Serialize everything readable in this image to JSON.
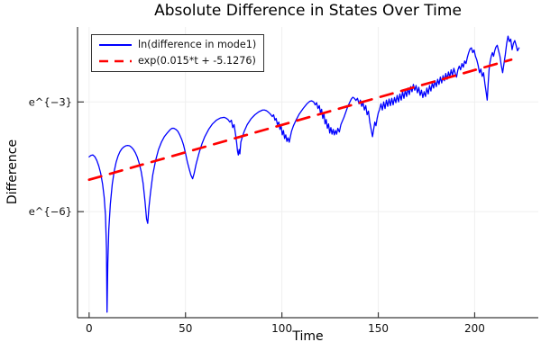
{
  "chart_data": {
    "type": "line",
    "title": "Absolute Difference in States Over Time",
    "xlabel": "Time",
    "ylabel": "Difference",
    "xlim": [
      -6,
      233
    ],
    "ylim_ln": [
      -8.9,
      -0.95
    ],
    "x_ticks": [
      0,
      50,
      100,
      150,
      200
    ],
    "y_ticks": [
      {
        "v": -3,
        "label": "e^{−3}"
      },
      {
        "v": -6,
        "label": "e^{−6}"
      }
    ],
    "grid": true,
    "legend_position": "top-left",
    "axis_color": "#3a3a3a",
    "grid_color": "#efefef",
    "series": [
      {
        "name": "ln(difference in mode1)",
        "color": "#0000ff",
        "style": "solid",
        "width": 1.3,
        "points": [
          [
            0,
            -4.5
          ],
          [
            1,
            -4.46
          ],
          [
            2,
            -4.45
          ],
          [
            3,
            -4.5
          ],
          [
            4,
            -4.6
          ],
          [
            5,
            -4.75
          ],
          [
            6,
            -4.95
          ],
          [
            7,
            -5.25
          ],
          [
            7.8,
            -5.6
          ],
          [
            8.5,
            -6.1
          ],
          [
            9,
            -7.0
          ],
          [
            9.3,
            -8.75
          ],
          [
            9.7,
            -7.4
          ],
          [
            10.2,
            -6.5
          ],
          [
            11,
            -5.8
          ],
          [
            12,
            -5.25
          ],
          [
            13,
            -4.9
          ],
          [
            14,
            -4.65
          ],
          [
            15,
            -4.48
          ],
          [
            16,
            -4.36
          ],
          [
            17,
            -4.28
          ],
          [
            18,
            -4.23
          ],
          [
            19,
            -4.2
          ],
          [
            20,
            -4.19
          ],
          [
            21,
            -4.2
          ],
          [
            22,
            -4.24
          ],
          [
            23,
            -4.3
          ],
          [
            24,
            -4.39
          ],
          [
            25,
            -4.51
          ],
          [
            26,
            -4.68
          ],
          [
            27,
            -4.9
          ],
          [
            28,
            -5.22
          ],
          [
            29,
            -5.72
          ],
          [
            29.8,
            -6.2
          ],
          [
            30.4,
            -6.32
          ],
          [
            31,
            -5.9
          ],
          [
            31.8,
            -5.5
          ],
          [
            33,
            -5.0
          ],
          [
            34.5,
            -4.6
          ],
          [
            36,
            -4.3
          ],
          [
            37.5,
            -4.1
          ],
          [
            39,
            -3.95
          ],
          [
            40.5,
            -3.85
          ],
          [
            42,
            -3.76
          ],
          [
            43,
            -3.72
          ],
          [
            44,
            -3.72
          ],
          [
            45,
            -3.75
          ],
          [
            46,
            -3.8
          ],
          [
            47,
            -3.9
          ],
          [
            48,
            -4.02
          ],
          [
            49,
            -4.18
          ],
          [
            50,
            -4.4
          ],
          [
            51,
            -4.65
          ],
          [
            52,
            -4.85
          ],
          [
            52.8,
            -5.0
          ],
          [
            53.7,
            -5.1
          ],
          [
            54.5,
            -4.95
          ],
          [
            55.5,
            -4.7
          ],
          [
            57,
            -4.4
          ],
          [
            58.5,
            -4.15
          ],
          [
            60,
            -3.95
          ],
          [
            62,
            -3.75
          ],
          [
            64,
            -3.6
          ],
          [
            66,
            -3.5
          ],
          [
            68,
            -3.44
          ],
          [
            70,
            -3.42
          ],
          [
            71,
            -3.44
          ],
          [
            72,
            -3.48
          ],
          [
            73,
            -3.55
          ],
          [
            73.8,
            -3.5
          ],
          [
            74.5,
            -3.7
          ],
          [
            75.2,
            -3.62
          ],
          [
            76,
            -3.9
          ],
          [
            76.5,
            -4.1
          ],
          [
            77,
            -4.35
          ],
          [
            77.4,
            -4.45
          ],
          [
            77.8,
            -4.3
          ],
          [
            78.2,
            -4.42
          ],
          [
            78.7,
            -4.1
          ],
          [
            79.5,
            -3.95
          ],
          [
            80.5,
            -3.8
          ],
          [
            82,
            -3.62
          ],
          [
            84,
            -3.46
          ],
          [
            86,
            -3.35
          ],
          [
            88,
            -3.27
          ],
          [
            90,
            -3.22
          ],
          [
            91,
            -3.22
          ],
          [
            92,
            -3.24
          ],
          [
            93,
            -3.28
          ],
          [
            94,
            -3.33
          ],
          [
            95,
            -3.4
          ],
          [
            95.7,
            -3.35
          ],
          [
            96.4,
            -3.5
          ],
          [
            97,
            -3.45
          ],
          [
            97.7,
            -3.62
          ],
          [
            98.4,
            -3.55
          ],
          [
            99,
            -3.75
          ],
          [
            99.6,
            -3.65
          ],
          [
            100.2,
            -3.9
          ],
          [
            100.8,
            -3.78
          ],
          [
            101.4,
            -4.0
          ],
          [
            102,
            -3.9
          ],
          [
            102.6,
            -4.08
          ],
          [
            103.2,
            -3.98
          ],
          [
            103.8,
            -4.1
          ],
          [
            104.4,
            -3.95
          ],
          [
            105,
            -3.8
          ],
          [
            106,
            -3.65
          ],
          [
            107.5,
            -3.48
          ],
          [
            109,
            -3.33
          ],
          [
            111,
            -3.18
          ],
          [
            113,
            -3.05
          ],
          [
            114.5,
            -2.98
          ],
          [
            115.5,
            -2.97
          ],
          [
            116.5,
            -3.0
          ],
          [
            117.3,
            -3.08
          ],
          [
            118,
            -3.02
          ],
          [
            118.7,
            -3.18
          ],
          [
            119.4,
            -3.1
          ],
          [
            120,
            -3.3
          ],
          [
            120.6,
            -3.2
          ],
          [
            121.2,
            -3.45
          ],
          [
            121.8,
            -3.32
          ],
          [
            122.4,
            -3.6
          ],
          [
            123,
            -3.48
          ],
          [
            123.6,
            -3.72
          ],
          [
            124.2,
            -3.6
          ],
          [
            124.8,
            -3.85
          ],
          [
            125.4,
            -3.7
          ],
          [
            126,
            -3.88
          ],
          [
            126.6,
            -3.75
          ],
          [
            127.2,
            -3.9
          ],
          [
            127.8,
            -3.78
          ],
          [
            128.4,
            -3.88
          ],
          [
            129,
            -3.72
          ],
          [
            129.8,
            -3.82
          ],
          [
            130.6,
            -3.62
          ],
          [
            131.4,
            -3.52
          ],
          [
            132.2,
            -3.42
          ],
          [
            133,
            -3.3
          ],
          [
            134,
            -3.15
          ],
          [
            135,
            -3.03
          ],
          [
            136,
            -2.92
          ],
          [
            136.8,
            -2.87
          ],
          [
            137.6,
            -2.9
          ],
          [
            138.4,
            -2.96
          ],
          [
            139.2,
            -2.9
          ],
          [
            140,
            -3.05
          ],
          [
            140.7,
            -2.95
          ],
          [
            141.4,
            -3.12
          ],
          [
            142.1,
            -3.02
          ],
          [
            142.8,
            -3.22
          ],
          [
            143.5,
            -3.1
          ],
          [
            144.2,
            -3.35
          ],
          [
            144.9,
            -3.25
          ],
          [
            145.6,
            -3.55
          ],
          [
            146.3,
            -3.75
          ],
          [
            147,
            -3.95
          ],
          [
            147.6,
            -3.75
          ],
          [
            148.2,
            -3.55
          ],
          [
            148.8,
            -3.65
          ],
          [
            149.4,
            -3.45
          ],
          [
            150,
            -3.3
          ],
          [
            150.7,
            -3.2
          ],
          [
            151.4,
            -3.05
          ],
          [
            152.1,
            -3.22
          ],
          [
            152.8,
            -3.0
          ],
          [
            153.5,
            -3.18
          ],
          [
            154.2,
            -2.95
          ],
          [
            154.9,
            -3.12
          ],
          [
            155.6,
            -2.92
          ],
          [
            156.3,
            -3.1
          ],
          [
            157,
            -2.9
          ],
          [
            157.7,
            -3.08
          ],
          [
            158.4,
            -2.88
          ],
          [
            159.1,
            -3.02
          ],
          [
            159.8,
            -2.82
          ],
          [
            160.5,
            -3.0
          ],
          [
            161.2,
            -2.78
          ],
          [
            161.9,
            -2.95
          ],
          [
            162.6,
            -2.72
          ],
          [
            163.3,
            -2.9
          ],
          [
            164,
            -2.68
          ],
          [
            164.7,
            -2.85
          ],
          [
            165.4,
            -2.62
          ],
          [
            166.1,
            -2.8
          ],
          [
            166.8,
            -2.58
          ],
          [
            167.5,
            -2.72
          ],
          [
            168.2,
            -2.52
          ],
          [
            168.9,
            -2.68
          ],
          [
            169.6,
            -2.55
          ],
          [
            170.3,
            -2.75
          ],
          [
            171,
            -2.6
          ],
          [
            171.7,
            -2.82
          ],
          [
            172.4,
            -2.68
          ],
          [
            173.1,
            -2.88
          ],
          [
            173.8,
            -2.72
          ],
          [
            174.5,
            -2.85
          ],
          [
            175.2,
            -2.62
          ],
          [
            175.9,
            -2.78
          ],
          [
            176.6,
            -2.55
          ],
          [
            177.3,
            -2.7
          ],
          [
            178,
            -2.48
          ],
          [
            178.7,
            -2.62
          ],
          [
            179.4,
            -2.42
          ],
          [
            180.1,
            -2.58
          ],
          [
            180.8,
            -2.38
          ],
          [
            181.5,
            -2.52
          ],
          [
            182.2,
            -2.32
          ],
          [
            182.9,
            -2.48
          ],
          [
            183.6,
            -2.28
          ],
          [
            184.3,
            -2.42
          ],
          [
            185,
            -2.22
          ],
          [
            185.7,
            -2.38
          ],
          [
            186.4,
            -2.18
          ],
          [
            187.1,
            -2.32
          ],
          [
            187.8,
            -2.12
          ],
          [
            188.5,
            -2.28
          ],
          [
            189.2,
            -2.08
          ],
          [
            189.9,
            -2.22
          ],
          [
            190.6,
            -2.32
          ],
          [
            191.3,
            -2.12
          ],
          [
            192,
            -2.02
          ],
          [
            192.7,
            -2.12
          ],
          [
            193.4,
            -1.95
          ],
          [
            194.1,
            -2.05
          ],
          [
            194.8,
            -1.88
          ],
          [
            195.5,
            -1.95
          ],
          [
            196.2,
            -1.78
          ],
          [
            196.9,
            -1.65
          ],
          [
            197.6,
            -1.55
          ],
          [
            198.3,
            -1.52
          ],
          [
            199,
            -1.65
          ],
          [
            199.7,
            -1.58
          ],
          [
            200.4,
            -1.75
          ],
          [
            201.1,
            -1.85
          ],
          [
            201.8,
            -2.0
          ],
          [
            202.5,
            -2.2
          ],
          [
            203.2,
            -2.1
          ],
          [
            203.9,
            -2.3
          ],
          [
            204.6,
            -2.2
          ],
          [
            205.3,
            -2.5
          ],
          [
            206,
            -2.75
          ],
          [
            206.5,
            -2.95
          ],
          [
            207,
            -2.5
          ],
          [
            207.5,
            -2.1
          ],
          [
            208,
            -1.9
          ],
          [
            208.6,
            -1.75
          ],
          [
            209.2,
            -1.65
          ],
          [
            209.8,
            -1.75
          ],
          [
            210.4,
            -1.6
          ],
          [
            211,
            -1.5
          ],
          [
            211.7,
            -1.45
          ],
          [
            212.4,
            -1.6
          ],
          [
            213.1,
            -1.75
          ],
          [
            213.8,
            -2.0
          ],
          [
            214.5,
            -2.2
          ],
          [
            215.2,
            -1.95
          ],
          [
            215.9,
            -1.7
          ],
          [
            216.6,
            -1.4
          ],
          [
            217.3,
            -1.2
          ],
          [
            218,
            -1.35
          ],
          [
            218.7,
            -1.28
          ],
          [
            219.4,
            -1.57
          ],
          [
            220.1,
            -1.4
          ],
          [
            220.8,
            -1.32
          ],
          [
            221.5,
            -1.45
          ],
          [
            222.2,
            -1.6
          ],
          [
            223,
            -1.52
          ]
        ]
      },
      {
        "name": "exp(0.015*t + -5.1276)",
        "color": "#ff0000",
        "style": "dashed",
        "width": 2.7,
        "slope": 0.015,
        "intercept": -5.1276,
        "points": [
          [
            0,
            -5.1276
          ],
          [
            219,
            -1.8426
          ]
        ]
      }
    ]
  }
}
